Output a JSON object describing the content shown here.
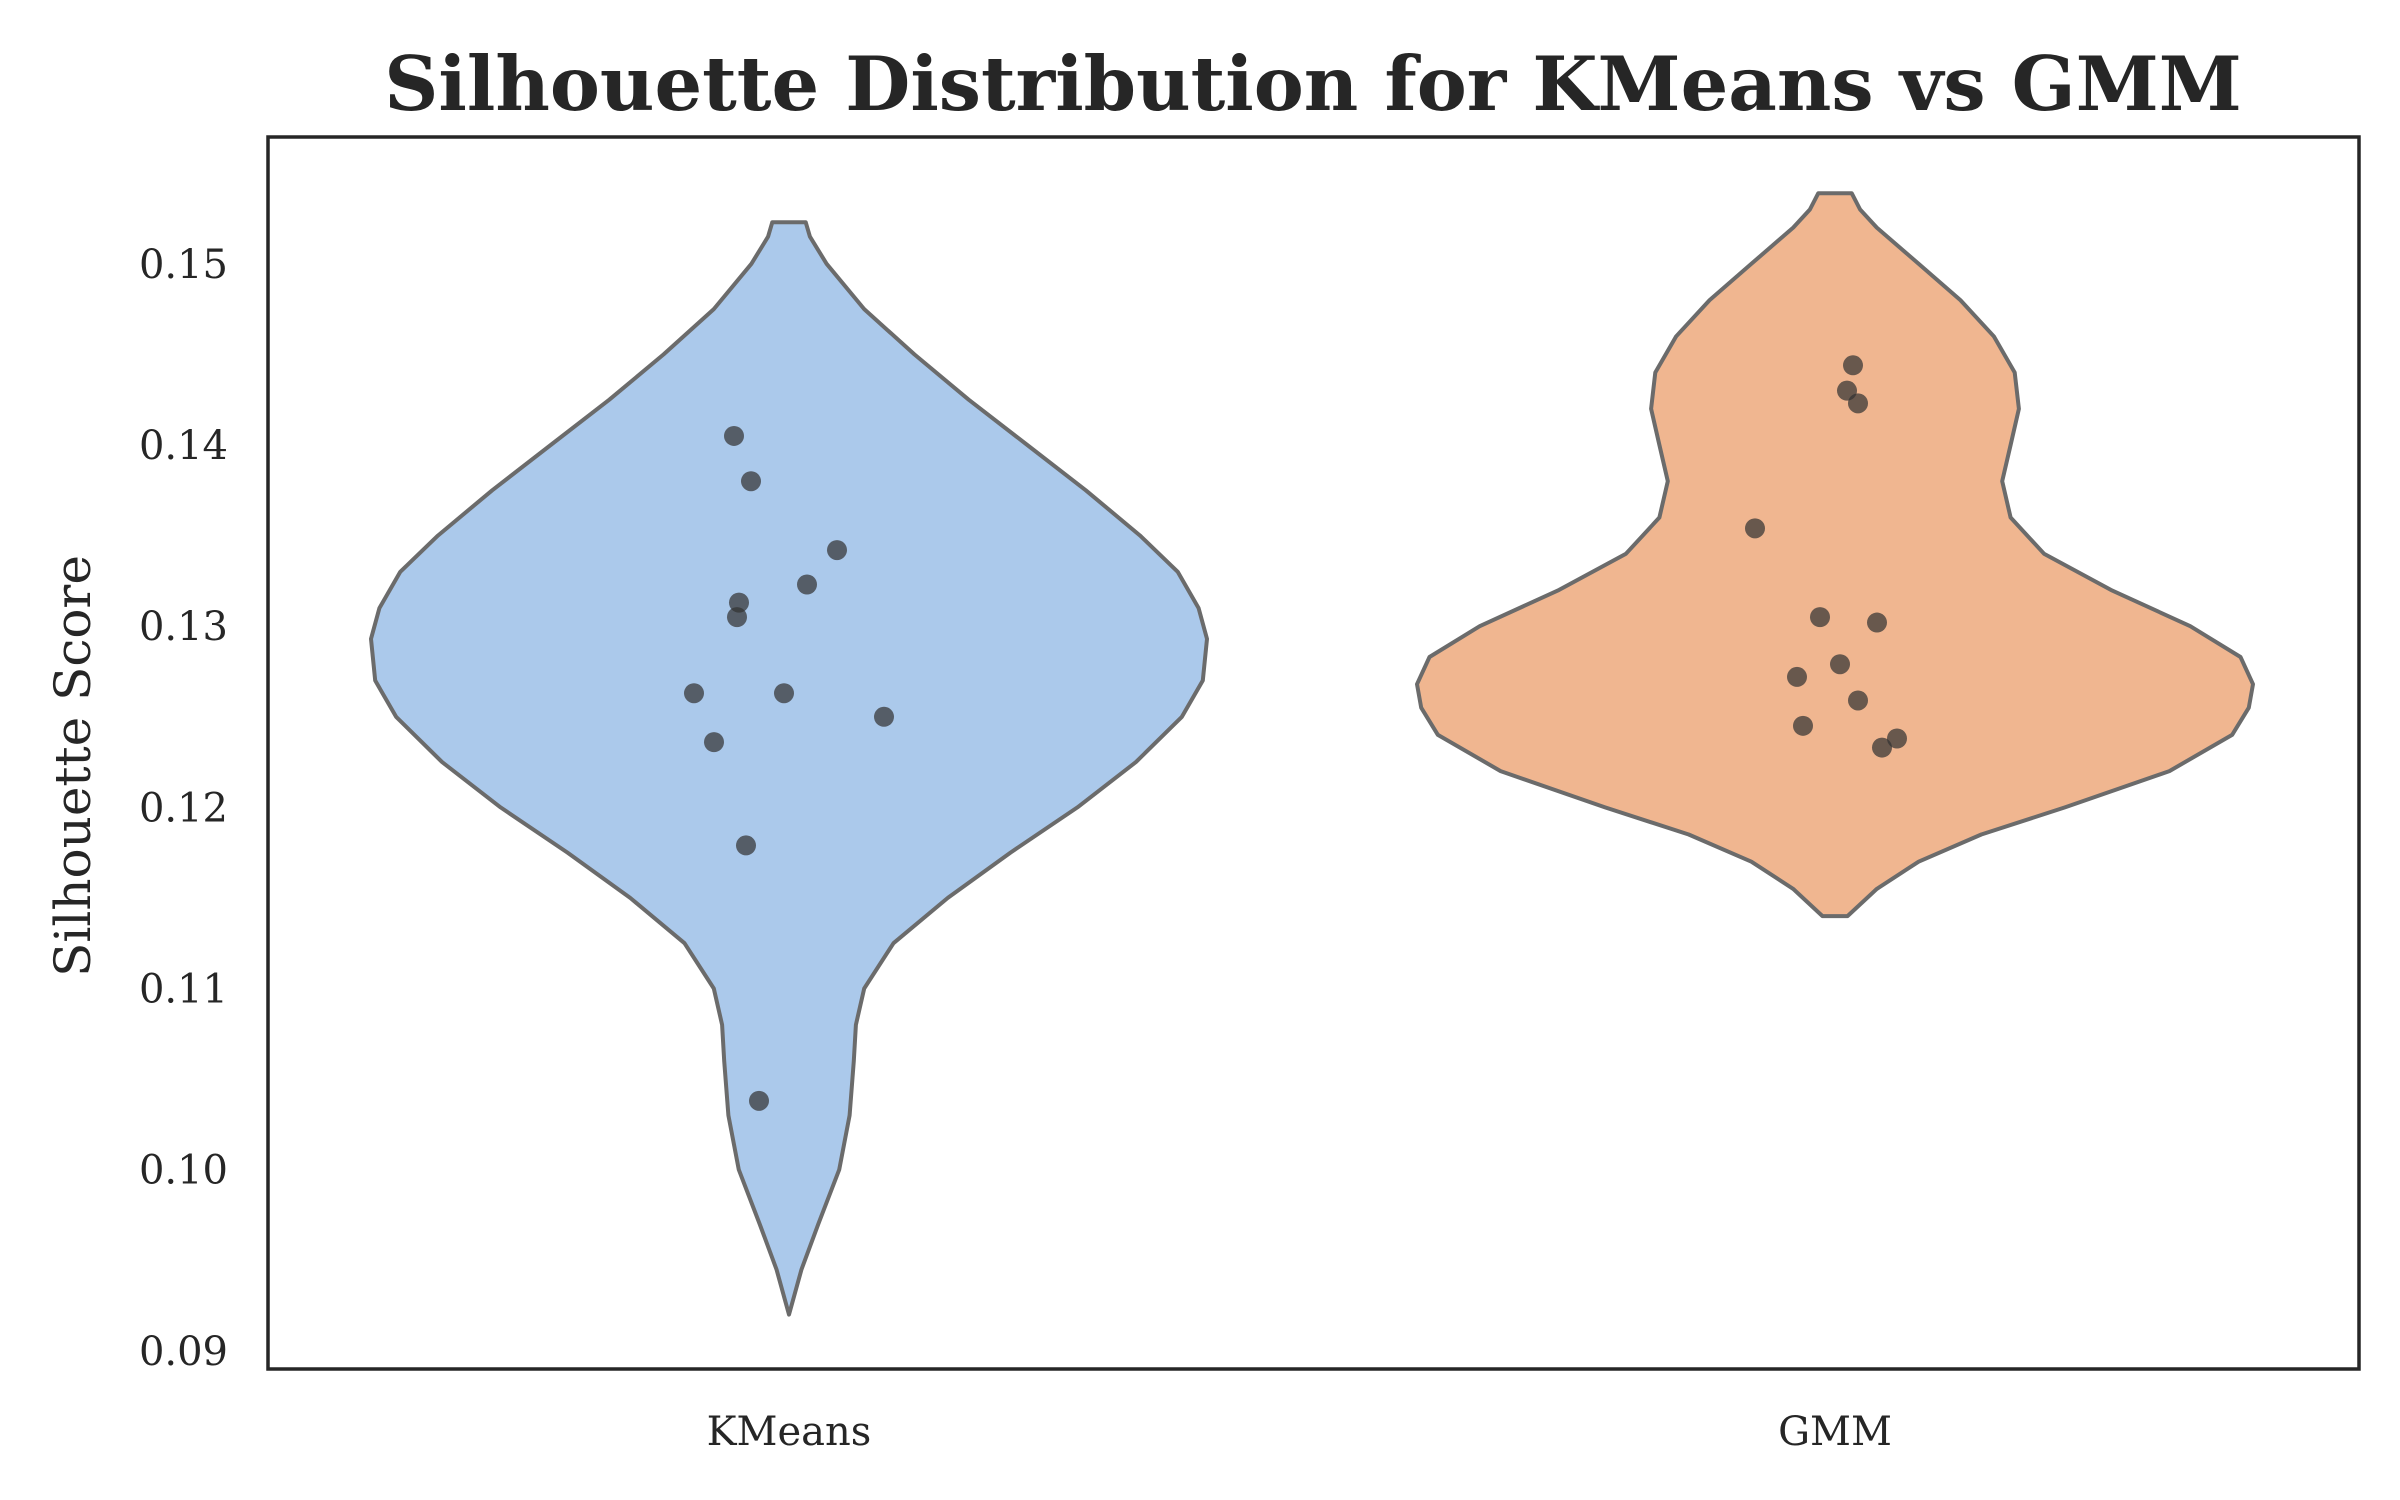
{
  "chart_data": {
    "type": "violin",
    "title": "Silhouette Distribution for KMeans vs GMM",
    "xlabel": "",
    "ylabel": "Silhouette Score",
    "ylim": [
      0.089,
      0.157
    ],
    "yticks": [
      "0.09",
      "0.10",
      "0.11",
      "0.12",
      "0.13",
      "0.14",
      "0.15"
    ],
    "categories": [
      "KMeans",
      "GMM"
    ],
    "grid": false,
    "colors": {
      "KMeans": "#abc9eb",
      "GMM": "#f0b690",
      "points": "#333333",
      "outline": "#6b6b6b"
    },
    "series": [
      {
        "category": "KMeans",
        "points": [
          0.1405,
          0.138,
          0.1342,
          0.1323,
          0.1313,
          0.1305,
          0.1263,
          0.1263,
          0.125,
          0.1236,
          0.1179,
          0.1038
        ],
        "violin": {
          "y": [
            0.092,
            0.0945,
            0.097,
            0.1,
            0.103,
            0.106,
            0.108,
            0.11,
            0.1125,
            0.115,
            0.1175,
            0.12,
            0.1225,
            0.125,
            0.127,
            0.1293,
            0.131,
            0.133,
            0.135,
            0.1375,
            0.14,
            0.1425,
            0.145,
            0.1475,
            0.15,
            0.1515,
            0.1523
          ],
          "halfwidth": [
            0.0,
            0.03,
            0.07,
            0.12,
            0.145,
            0.155,
            0.16,
            0.18,
            0.25,
            0.38,
            0.53,
            0.69,
            0.83,
            0.94,
            0.99,
            1.0,
            0.98,
            0.93,
            0.84,
            0.71,
            0.57,
            0.43,
            0.3,
            0.18,
            0.09,
            0.05,
            0.04
          ]
        }
      },
      {
        "category": "GMM",
        "points": [
          0.1444,
          0.143,
          0.1423,
          0.1354,
          0.1305,
          0.1302,
          0.1279,
          0.1272,
          0.1259,
          0.1245,
          0.1238,
          0.1233
        ],
        "violin": {
          "y": [
            0.114,
            0.1155,
            0.117,
            0.1185,
            0.12,
            0.122,
            0.124,
            0.1255,
            0.1268,
            0.1283,
            0.13,
            0.132,
            0.134,
            0.136,
            0.138,
            0.14,
            0.142,
            0.144,
            0.146,
            0.148,
            0.15,
            0.152,
            0.153,
            0.1539
          ],
          "halfwidth": [
            0.03,
            0.1,
            0.2,
            0.35,
            0.55,
            0.8,
            0.95,
            0.99,
            1.0,
            0.97,
            0.85,
            0.66,
            0.5,
            0.42,
            0.4,
            0.42,
            0.44,
            0.43,
            0.38,
            0.3,
            0.2,
            0.1,
            0.06,
            0.04
          ]
        }
      }
    ]
  }
}
